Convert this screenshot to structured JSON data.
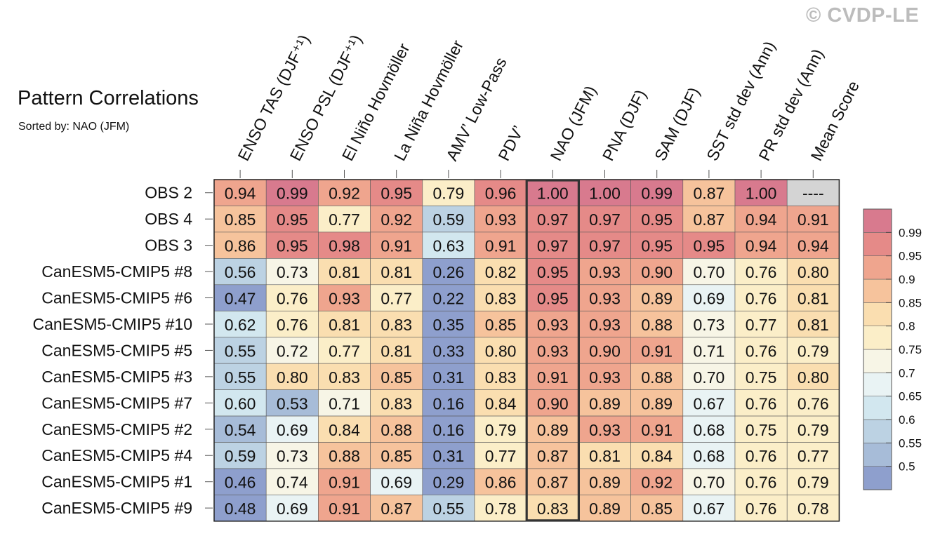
{
  "title": "Pattern Correlations",
  "subtitle": "Sorted by: NAO (JFM)",
  "copyright": "© CVDP-LE",
  "chart_data": {
    "type": "heatmap",
    "columns": [
      "ENSO TAS (DJF⁺¹)",
      "ENSO PSL (DJF⁺¹)",
      "El Niño Hovmöller",
      "La Niña Hovmöller",
      "AMV’ Low-Pass",
      "PDV’",
      "NAO (JFM)",
      "PNA (DJF)",
      "SAM (DJF)",
      "SST std dev (Ann)",
      "PR std dev (Ann)",
      "Mean Score"
    ],
    "highlighted_column": "NAO (JFM)",
    "rows": [
      {
        "label": "OBS 2",
        "values": [
          "0.94",
          "0.99",
          "0.92",
          "0.95",
          "0.79",
          "0.96",
          "1.00",
          "1.00",
          "0.99",
          "0.87",
          "1.00",
          "----"
        ]
      },
      {
        "label": "OBS 4",
        "values": [
          "0.85",
          "0.95",
          "0.77",
          "0.92",
          "0.59",
          "0.93",
          "0.97",
          "0.97",
          "0.95",
          "0.87",
          "0.94",
          "0.91"
        ]
      },
      {
        "label": "OBS 3",
        "values": [
          "0.86",
          "0.95",
          "0.98",
          "0.91",
          "0.63",
          "0.91",
          "0.97",
          "0.97",
          "0.95",
          "0.95",
          "0.94",
          "0.94"
        ]
      },
      {
        "label": "CanESM5-CMIP5 #8",
        "values": [
          "0.56",
          "0.73",
          "0.81",
          "0.81",
          "0.26",
          "0.82",
          "0.95",
          "0.93",
          "0.90",
          "0.70",
          "0.76",
          "0.80"
        ]
      },
      {
        "label": "CanESM5-CMIP5 #6",
        "values": [
          "0.47",
          "0.76",
          "0.93",
          "0.77",
          "0.22",
          "0.83",
          "0.95",
          "0.93",
          "0.89",
          "0.69",
          "0.76",
          "0.81"
        ]
      },
      {
        "label": "CanESM5-CMIP5 #10",
        "values": [
          "0.62",
          "0.76",
          "0.81",
          "0.83",
          "0.35",
          "0.85",
          "0.93",
          "0.93",
          "0.88",
          "0.73",
          "0.77",
          "0.81"
        ]
      },
      {
        "label": "CanESM5-CMIP5 #5",
        "values": [
          "0.55",
          "0.72",
          "0.77",
          "0.81",
          "0.33",
          "0.80",
          "0.93",
          "0.90",
          "0.91",
          "0.71",
          "0.76",
          "0.79"
        ]
      },
      {
        "label": "CanESM5-CMIP5 #3",
        "values": [
          "0.55",
          "0.80",
          "0.83",
          "0.85",
          "0.31",
          "0.83",
          "0.91",
          "0.93",
          "0.88",
          "0.70",
          "0.75",
          "0.80"
        ]
      },
      {
        "label": "CanESM5-CMIP5 #7",
        "values": [
          "0.60",
          "0.53",
          "0.71",
          "0.83",
          "0.16",
          "0.84",
          "0.90",
          "0.89",
          "0.89",
          "0.67",
          "0.76",
          "0.76"
        ]
      },
      {
        "label": "CanESM5-CMIP5 #2",
        "values": [
          "0.54",
          "0.69",
          "0.84",
          "0.88",
          "0.16",
          "0.79",
          "0.89",
          "0.93",
          "0.91",
          "0.68",
          "0.75",
          "0.79"
        ]
      },
      {
        "label": "CanESM5-CMIP5 #4",
        "values": [
          "0.59",
          "0.73",
          "0.88",
          "0.85",
          "0.31",
          "0.77",
          "0.87",
          "0.81",
          "0.84",
          "0.68",
          "0.76",
          "0.77"
        ]
      },
      {
        "label": "CanESM5-CMIP5 #1",
        "values": [
          "0.46",
          "0.74",
          "0.91",
          "0.69",
          "0.29",
          "0.86",
          "0.87",
          "0.89",
          "0.92",
          "0.70",
          "0.76",
          "0.79"
        ]
      },
      {
        "label": "CanESM5-CMIP5 #9",
        "values": [
          "0.48",
          "0.69",
          "0.91",
          "0.87",
          "0.55",
          "0.78",
          "0.83",
          "0.89",
          "0.85",
          "0.67",
          "0.76",
          "0.78"
        ]
      }
    ],
    "colorbar": {
      "levels": [
        "0.5",
        "0.55",
        "0.6",
        "0.65",
        "0.7",
        "0.75",
        "0.8",
        "0.85",
        "0.9",
        "0.95",
        "0.99"
      ],
      "colors": [
        "#8e9fcd",
        "#a7bcd8",
        "#bcd2e3",
        "#d2e7ef",
        "#e9f3f4",
        "#f7f5e6",
        "#fbeec8",
        "#fadeb0",
        "#f6c39c",
        "#efa58e",
        "#e58a88",
        "#d87a8e"
      ]
    },
    "missing_color": "#d4d4d4",
    "highlight_color": "#333333"
  }
}
